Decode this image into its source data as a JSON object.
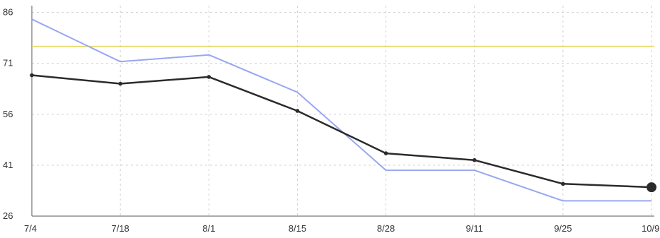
{
  "chart_data": {
    "type": "line",
    "title": "",
    "xlabel": "",
    "ylabel": "",
    "categories": [
      "7/4",
      "7/18",
      "8/1",
      "8/15",
      "8/28",
      "9/11",
      "9/25",
      "10/9"
    ],
    "x_tick_labels": [
      "7/4",
      "7/18",
      "8/1",
      "8/15",
      "8/28",
      "9/11",
      "9/25",
      "10/9"
    ],
    "y_ticks": [
      26,
      41,
      56,
      71,
      86
    ],
    "ylim": [
      26,
      88
    ],
    "grid": true,
    "legend": "none",
    "reference_line": {
      "value": 76,
      "color": "#e3d75a"
    },
    "series": [
      {
        "color": "#2b2b2b",
        "markers": true,
        "values": [
          67.5,
          65,
          67,
          57,
          44.5,
          42.5,
          35.5,
          34.5
        ]
      },
      {
        "color": "#99a6f2",
        "markers": false,
        "values": [
          84,
          71.5,
          73.5,
          62.5,
          39.5,
          39.5,
          30.5,
          30.5
        ]
      }
    ]
  }
}
